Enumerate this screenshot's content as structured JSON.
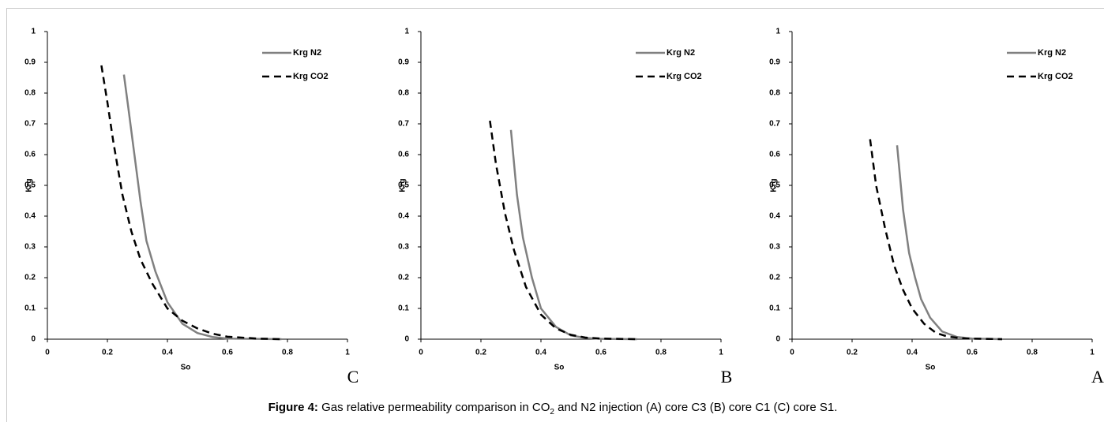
{
  "caption": {
    "label": "Figure 4:",
    "text_before": "Gas relative permeability comparison in CO",
    "subscript": "2",
    "text_after": " and N2 injection (A) core C3 (B) core C1 (C) core S1."
  },
  "chart_data": [
    {
      "type": "line",
      "panel_label": "C",
      "xlabel": "So",
      "ylabel": "Krg",
      "xlim": [
        0,
        1
      ],
      "ylim": [
        0,
        1
      ],
      "xticks": [
        0,
        0.2,
        0.4,
        0.6,
        0.8,
        1
      ],
      "yticks": [
        0,
        0.1,
        0.2,
        0.3,
        0.4,
        0.5,
        0.6,
        0.7,
        0.8,
        0.9,
        1
      ],
      "legend": "upper right",
      "series": [
        {
          "name": "Krg N2",
          "color": "#808080",
          "dashed": false,
          "x": [
            0.255,
            0.27,
            0.29,
            0.31,
            0.33,
            0.36,
            0.4,
            0.45,
            0.5,
            0.55,
            0.6,
            0.7,
            0.78
          ],
          "values": [
            0.86,
            0.75,
            0.6,
            0.45,
            0.32,
            0.22,
            0.12,
            0.05,
            0.02,
            0.007,
            0.002,
            0.001,
            0
          ]
        },
        {
          "name": "Krg CO2",
          "color": "#000000",
          "dashed": true,
          "x": [
            0.18,
            0.2,
            0.22,
            0.25,
            0.28,
            0.31,
            0.35,
            0.4,
            0.45,
            0.5,
            0.55,
            0.6,
            0.7,
            0.78
          ],
          "values": [
            0.89,
            0.77,
            0.64,
            0.47,
            0.35,
            0.26,
            0.18,
            0.1,
            0.06,
            0.035,
            0.018,
            0.008,
            0.002,
            0
          ]
        }
      ]
    },
    {
      "type": "line",
      "panel_label": "B",
      "xlabel": "So",
      "ylabel": "Krg",
      "xlim": [
        0,
        1
      ],
      "ylim": [
        0,
        1
      ],
      "xticks": [
        0,
        0.2,
        0.4,
        0.6,
        0.8,
        1
      ],
      "yticks": [
        0,
        0.1,
        0.2,
        0.3,
        0.4,
        0.5,
        0.6,
        0.7,
        0.8,
        0.9,
        1
      ],
      "legend": "upper right",
      "series": [
        {
          "name": "Krg N2",
          "color": "#808080",
          "dashed": false,
          "x": [
            0.3,
            0.32,
            0.34,
            0.37,
            0.4,
            0.45,
            0.5,
            0.55,
            0.6,
            0.72
          ],
          "values": [
            0.68,
            0.47,
            0.33,
            0.2,
            0.1,
            0.04,
            0.012,
            0.004,
            0.001,
            0
          ]
        },
        {
          "name": "Krg CO2",
          "color": "#000000",
          "dashed": true,
          "x": [
            0.23,
            0.25,
            0.28,
            0.31,
            0.35,
            0.4,
            0.45,
            0.5,
            0.55,
            0.6,
            0.72
          ],
          "values": [
            0.71,
            0.57,
            0.41,
            0.29,
            0.17,
            0.08,
            0.035,
            0.014,
            0.005,
            0.002,
            0
          ]
        }
      ]
    },
    {
      "type": "line",
      "panel_label": "A",
      "xlabel": "So",
      "ylabel": "Krg",
      "xlim": [
        0,
        1
      ],
      "ylim": [
        0,
        1
      ],
      "xticks": [
        0,
        0.2,
        0.4,
        0.6,
        0.8,
        1
      ],
      "yticks": [
        0,
        0.1,
        0.2,
        0.3,
        0.4,
        0.5,
        0.6,
        0.7,
        0.8,
        0.9,
        1
      ],
      "legend": "upper right",
      "series": [
        {
          "name": "Krg N2",
          "color": "#808080",
          "dashed": false,
          "x": [
            0.35,
            0.37,
            0.39,
            0.41,
            0.43,
            0.46,
            0.5,
            0.55,
            0.6,
            0.7
          ],
          "values": [
            0.63,
            0.42,
            0.28,
            0.2,
            0.13,
            0.07,
            0.025,
            0.007,
            0.002,
            0
          ]
        },
        {
          "name": "Krg CO2",
          "color": "#000000",
          "dashed": true,
          "x": [
            0.26,
            0.28,
            0.31,
            0.34,
            0.37,
            0.4,
            0.44,
            0.48,
            0.52,
            0.58,
            0.7
          ],
          "values": [
            0.65,
            0.5,
            0.36,
            0.24,
            0.16,
            0.1,
            0.05,
            0.02,
            0.008,
            0.002,
            0
          ]
        }
      ]
    }
  ]
}
